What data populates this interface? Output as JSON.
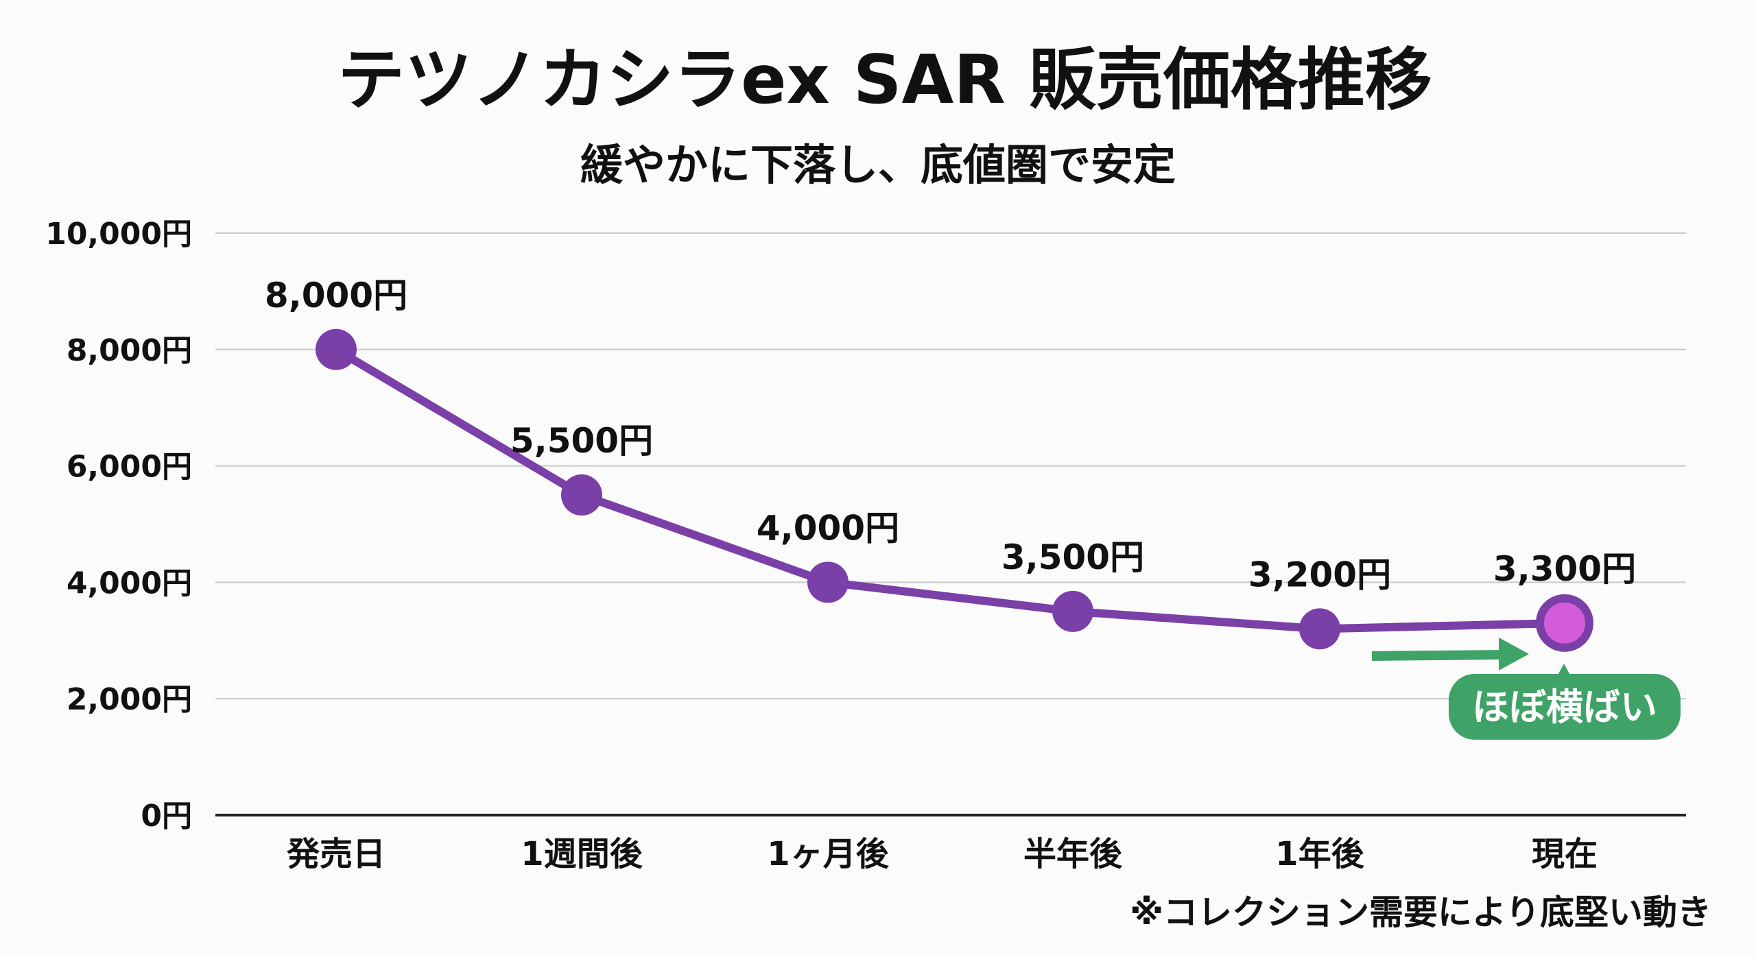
{
  "chart_data": {
    "type": "line",
    "title": "テツノカシラex SAR 販売価格推移",
    "subtitle": "緩やかに下落し、底値圏で安定",
    "categories": [
      "発売日",
      "1週間後",
      "1ヶ月後",
      "半年後",
      "1年後",
      "現在"
    ],
    "values": [
      8000,
      5500,
      4000,
      3500,
      3200,
      3300
    ],
    "data_labels": [
      "8,000円",
      "5,500円",
      "4,000円",
      "3,500円",
      "3,200円",
      "3,300円"
    ],
    "ylim": [
      0,
      10000
    ],
    "yticks": [
      0,
      2000,
      4000,
      6000,
      8000,
      10000
    ],
    "ytick_labels": [
      "0円",
      "2,000円",
      "4,000円",
      "6,000円",
      "8,000円",
      "10,000円"
    ],
    "grid": true,
    "xlabel": "",
    "ylabel": "",
    "annotation": "ほぼ横ばい",
    "footnote": "※コレクション需要により底堅い動き",
    "colors": {
      "line": "#7b3fa8",
      "highlight": "#d35cd8",
      "annotation": "#3fa266"
    }
  }
}
